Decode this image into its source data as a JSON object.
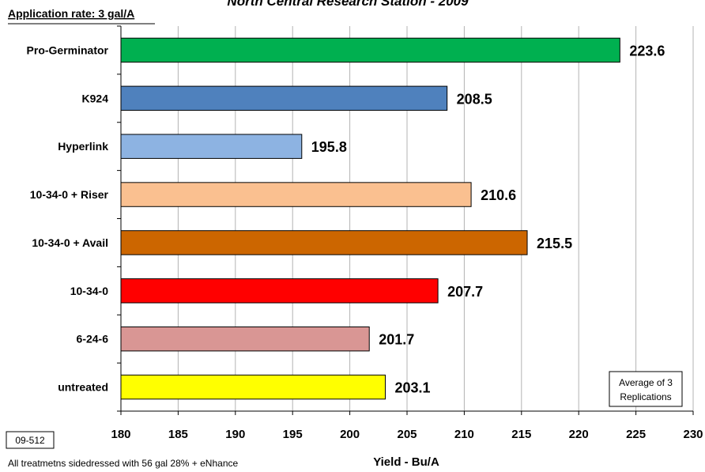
{
  "header": {
    "title": "North Central Research Station - 2009",
    "rate": "Application rate: 3 gal/A"
  },
  "footer": {
    "id_box": "09-512",
    "note": "All treatmetns sidedressed with  56 gal 28% + eNhance"
  },
  "note_box": {
    "line1": "Average of 3",
    "line2": "Replications"
  },
  "chart_data": {
    "type": "bar",
    "orientation": "horizontal",
    "title": "North Central Research Station - 2009",
    "xlabel": "Yield - Bu/A",
    "ylabel": "",
    "categories": [
      "Pro-Germinator",
      "K924",
      "Hyperlink",
      "10-34-0 + Riser",
      "10-34-0 + Avail",
      "10-34-0",
      "6-24-6",
      "untreated"
    ],
    "values": [
      223.6,
      208.5,
      195.8,
      210.6,
      215.5,
      207.7,
      201.7,
      203.1
    ],
    "value_labels": [
      "223.6",
      "208.5",
      "195.8",
      "210.6",
      "215.5",
      "207.7",
      "201.7",
      "203.1"
    ],
    "colors": [
      "#00b050",
      "#4f81bd",
      "#8db3e2",
      "#fac090",
      "#cc6600",
      "#ff0000",
      "#d99694",
      "#ffff00"
    ],
    "xlim": [
      180,
      230
    ],
    "ticks": [
      "180",
      "185",
      "190",
      "195",
      "200",
      "205",
      "210",
      "215",
      "220",
      "225",
      "230"
    ],
    "grid": true
  }
}
